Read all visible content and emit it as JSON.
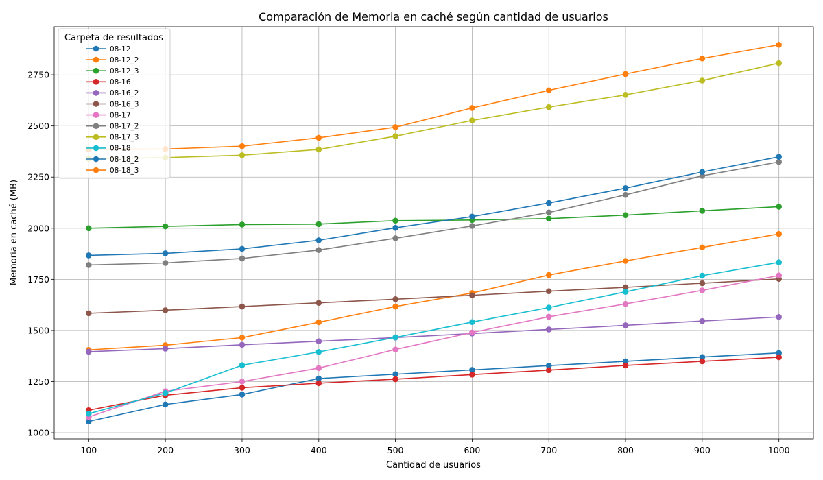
{
  "chart_data": {
    "type": "line",
    "title": "Comparación de Memoria en caché según cantidad de usuarios",
    "xlabel": "Cantidad de usuarios",
    "ylabel": "Memoria en caché (MB)",
    "x": [
      100,
      200,
      300,
      400,
      500,
      600,
      700,
      800,
      900,
      1000
    ],
    "xlim": [
      55,
      1045
    ],
    "ylim": [
      970,
      2985
    ],
    "xticks": [
      100,
      200,
      300,
      400,
      500,
      600,
      700,
      800,
      900,
      1000
    ],
    "yticks": [
      1000,
      1250,
      1500,
      1750,
      2000,
      2250,
      2500,
      2750
    ],
    "grid": true,
    "legend": {
      "title": "Carpeta de resultados",
      "placement": "top-left"
    },
    "series": [
      {
        "name": "08-12",
        "color": "#1f77b4",
        "values": [
          1055,
          1138,
          1187,
          1265,
          1286,
          1307,
          1328,
          1349,
          1370,
          1390
        ]
      },
      {
        "name": "08-12_2",
        "color": "#ff7f0e",
        "values": [
          1405,
          1428,
          1465,
          1540,
          1617,
          1683,
          1771,
          1840,
          1906,
          1972
        ]
      },
      {
        "name": "08-12_3",
        "color": "#2ca02c",
        "values": [
          2000,
          2009,
          2018,
          2020,
          2037,
          2040,
          2047,
          2064,
          2085,
          2105
        ]
      },
      {
        "name": "08-16",
        "color": "#d62728",
        "values": [
          1110,
          1183,
          1220,
          1242,
          1262,
          1284,
          1306,
          1329,
          1349,
          1369
        ]
      },
      {
        "name": "08-16_2",
        "color": "#9467bd",
        "values": [
          1396,
          1411,
          1430,
          1447,
          1465,
          1485,
          1505,
          1525,
          1546,
          1566
        ]
      },
      {
        "name": "08-16_3",
        "color": "#8c564b",
        "values": [
          1584,
          1599,
          1617,
          1635,
          1653,
          1672,
          1692,
          1711,
          1731,
          1752
        ]
      },
      {
        "name": "08-17",
        "color": "#e377c2",
        "values": [
          1077,
          1203,
          1250,
          1316,
          1407,
          1490,
          1567,
          1630,
          1696,
          1769
        ]
      },
      {
        "name": "08-17_2",
        "color": "#7f7f7f",
        "values": [
          1820,
          1830,
          1852,
          1893,
          1951,
          2011,
          2077,
          2163,
          2256,
          2324
        ]
      },
      {
        "name": "08-17_3",
        "color": "#bcbd22",
        "values": [
          2340,
          2345,
          2357,
          2385,
          2450,
          2527,
          2592,
          2652,
          2722,
          2807
        ]
      },
      {
        "name": "08-18",
        "color": "#17becf",
        "values": [
          1093,
          1194,
          1330,
          1395,
          1466,
          1541,
          1612,
          1689,
          1768,
          1833
        ]
      },
      {
        "name": "08-18_2",
        "color": "#1f77b4",
        "values": [
          1867,
          1877,
          1899,
          1941,
          2002,
          2057,
          2123,
          2196,
          2275,
          2349
        ]
      },
      {
        "name": "08-18_3",
        "color": "#ff7f0e",
        "values": [
          2386,
          2387,
          2401,
          2442,
          2494,
          2588,
          2674,
          2754,
          2830,
          2897
        ]
      }
    ]
  }
}
